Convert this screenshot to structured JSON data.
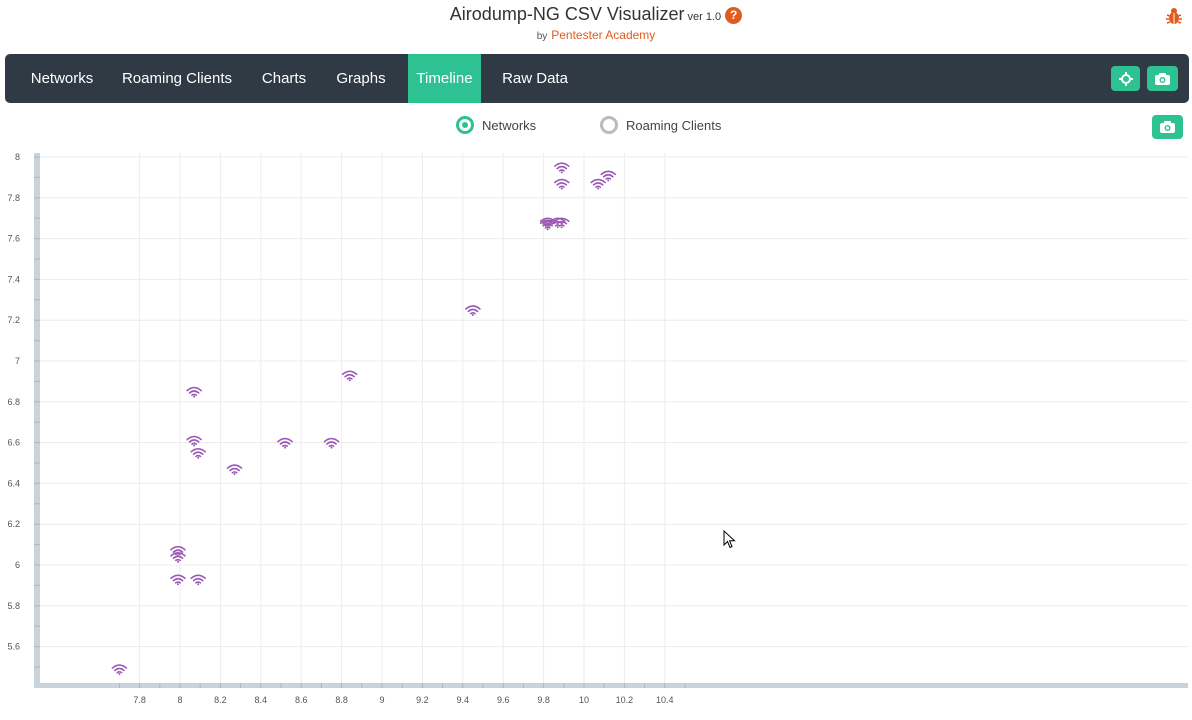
{
  "header": {
    "title": "Airodump-NG CSV Visualizer",
    "version": "ver 1.0",
    "by": "by",
    "author": "Pentester Academy",
    "help_icon": "question-circle-icon",
    "bug_icon": "bug-icon"
  },
  "nav": {
    "tabs": [
      {
        "label": "Networks",
        "active": false
      },
      {
        "label": "Roaming Clients",
        "active": false
      },
      {
        "label": "Charts",
        "active": false
      },
      {
        "label": "Graphs",
        "active": false
      },
      {
        "label": "Timeline",
        "active": true
      },
      {
        "label": "Raw Data",
        "active": false
      }
    ],
    "buttons": [
      "crosshair-icon",
      "camera-icon"
    ]
  },
  "filter": {
    "options": [
      {
        "label": "Networks",
        "selected": true
      },
      {
        "label": "Roaming Clients",
        "selected": false
      }
    ],
    "snapshot_icon": "camera-icon"
  },
  "colors": {
    "accent": "#2ec293",
    "navbar": "#2f3a45",
    "marker": "#9b59b6",
    "brand": "#e25b1e"
  },
  "chart_data": {
    "type": "scatter",
    "marker": "wifi-icon",
    "xlim": [
      7.68,
      10.5
    ],
    "ylim": [
      5.45,
      8.03
    ],
    "x_ticks": [
      7.8,
      8,
      8.2,
      8.4,
      8.6,
      8.8,
      9,
      9.2,
      9.4,
      9.6,
      9.8,
      10,
      10.2,
      10.4
    ],
    "y_ticks": [
      5.6,
      5.8,
      6,
      6.2,
      6.4,
      6.6,
      6.8,
      7,
      7.2,
      7.4,
      7.6,
      7.8,
      8
    ],
    "grid": true,
    "points": [
      {
        "x": 7.7,
        "y": 5.49
      },
      {
        "x": 7.99,
        "y": 6.07
      },
      {
        "x": 7.99,
        "y": 6.04
      },
      {
        "x": 7.99,
        "y": 5.93
      },
      {
        "x": 8.09,
        "y": 5.93
      },
      {
        "x": 8.07,
        "y": 6.85
      },
      {
        "x": 8.07,
        "y": 6.61
      },
      {
        "x": 8.09,
        "y": 6.55
      },
      {
        "x": 8.27,
        "y": 6.47
      },
      {
        "x": 8.52,
        "y": 6.6
      },
      {
        "x": 8.75,
        "y": 6.6
      },
      {
        "x": 8.84,
        "y": 6.93
      },
      {
        "x": 9.45,
        "y": 7.25
      },
      {
        "x": 9.82,
        "y": 7.68
      },
      {
        "x": 9.82,
        "y": 7.67
      },
      {
        "x": 9.87,
        "y": 7.68
      },
      {
        "x": 9.89,
        "y": 7.68
      },
      {
        "x": 9.89,
        "y": 7.87
      },
      {
        "x": 9.89,
        "y": 7.95
      },
      {
        "x": 10.07,
        "y": 7.87
      },
      {
        "x": 10.12,
        "y": 7.91
      }
    ]
  }
}
